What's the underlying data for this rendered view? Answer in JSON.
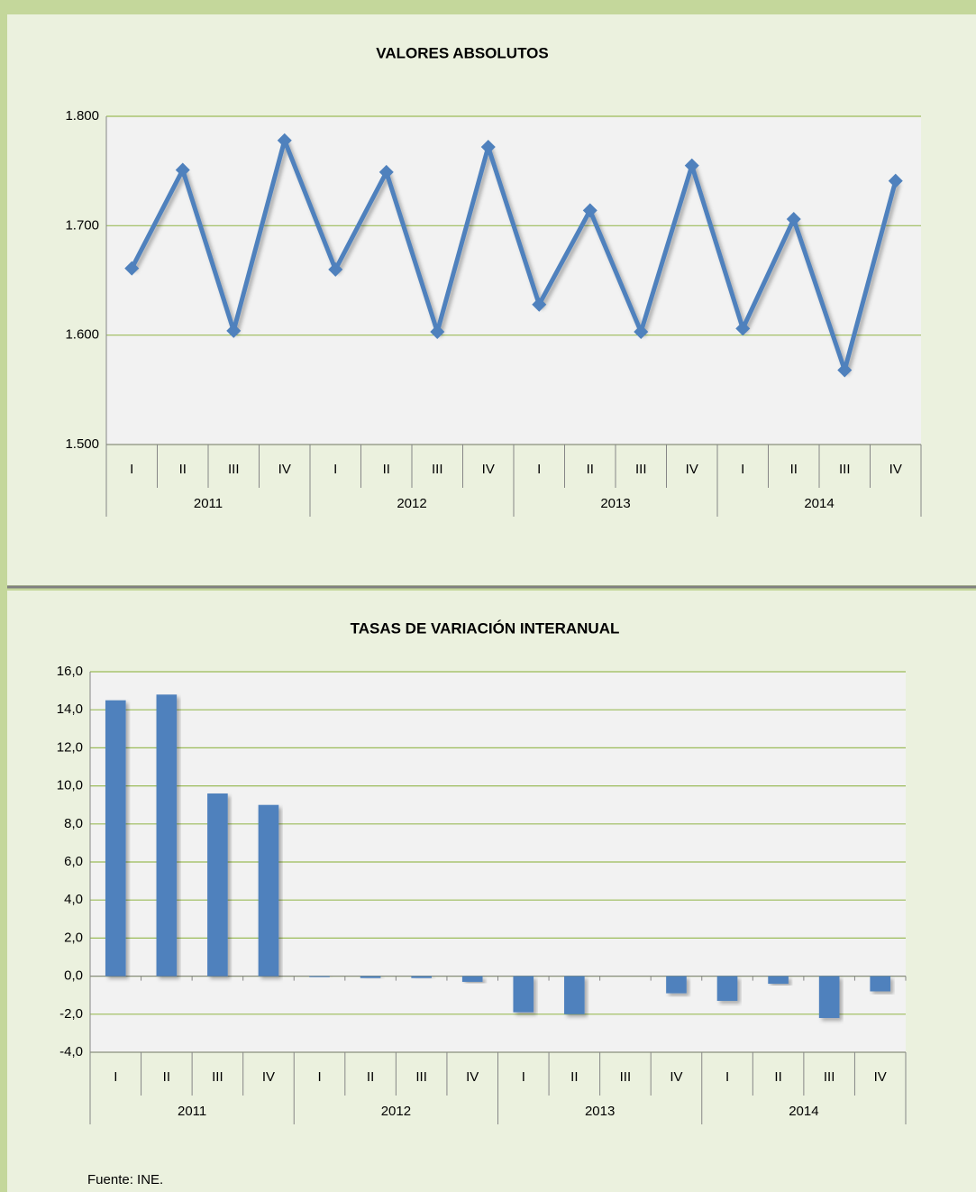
{
  "chart_data": [
    {
      "type": "line",
      "title": "VALORES ABSOLUTOS",
      "categories": [
        "I",
        "II",
        "III",
        "IV",
        "I",
        "II",
        "III",
        "IV",
        "I",
        "II",
        "III",
        "IV",
        "I",
        "II",
        "III",
        "IV"
      ],
      "groups": [
        "2011",
        "2012",
        "2013",
        "2014"
      ],
      "values": [
        1661,
        1751,
        1604,
        1778,
        1660,
        1749,
        1603,
        1772,
        1628,
        1714,
        1603,
        1755,
        1606,
        1706,
        1568,
        1741
      ],
      "color": "#4f81bd",
      "ylim": [
        1500,
        1800
      ],
      "yticks": [
        {
          "value": 1500,
          "label": "1.500"
        },
        {
          "value": 1600,
          "label": "1.600"
        },
        {
          "value": 1700,
          "label": "1.700"
        },
        {
          "value": 1800,
          "label": "1.800"
        }
      ],
      "grid": true
    },
    {
      "type": "bar",
      "title": "TASAS DE VARIACIÓN INTERANUAL",
      "categories": [
        "I",
        "II",
        "III",
        "IV",
        "I",
        "II",
        "III",
        "IV",
        "I",
        "II",
        "III",
        "IV",
        "I",
        "II",
        "III",
        "IV"
      ],
      "groups": [
        "2011",
        "2012",
        "2013",
        "2014"
      ],
      "values": [
        14.5,
        14.8,
        9.6,
        9.0,
        -0.05,
        -0.1,
        -0.1,
        -0.3,
        -1.9,
        -2.0,
        0.0,
        -0.9,
        -1.3,
        -0.4,
        -2.2,
        -0.8
      ],
      "color": "#4f81bd",
      "ylim": [
        -4,
        16
      ],
      "yticks": [
        {
          "value": -4,
          "label": "-4,0"
        },
        {
          "value": -2,
          "label": "-2,0"
        },
        {
          "value": 0,
          "label": "0,0"
        },
        {
          "value": 2,
          "label": "2,0"
        },
        {
          "value": 4,
          "label": "4,0"
        },
        {
          "value": 6,
          "label": "6,0"
        },
        {
          "value": 8,
          "label": "8,0"
        },
        {
          "value": 10,
          "label": "10,0"
        },
        {
          "value": 12,
          "label": "12,0"
        },
        {
          "value": 14,
          "label": "14,0"
        },
        {
          "value": 16,
          "label": "16,0"
        }
      ],
      "grid": true
    }
  ],
  "source": "Fuente: INE."
}
